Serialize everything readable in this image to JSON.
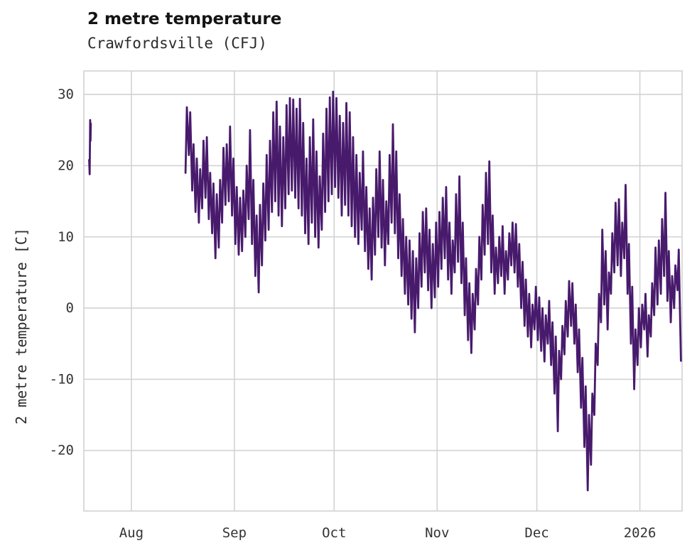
{
  "header": {
    "title": "2 metre temperature",
    "subtitle": "Crawfordsville (CFJ)"
  },
  "chart_data": {
    "type": "line",
    "title": "2 metre temperature",
    "subtitle": "Crawfordsville (CFJ)",
    "xlabel": "",
    "ylabel": "2 metre temperature [C]",
    "legend": "none",
    "grid": "on",
    "line_color": "#481a6c",
    "grid_color": "#d2d2d2",
    "tick_color": "#333333",
    "x_domain": [
      -14.3,
      165.7
    ],
    "y_domain": [
      -28.5,
      33.3
    ],
    "x_ticks": [
      {
        "label": "Aug",
        "day": 0
      },
      {
        "label": "Sep",
        "day": 31
      },
      {
        "label": "Oct",
        "day": 61
      },
      {
        "label": "Nov",
        "day": 92
      },
      {
        "label": "Dec",
        "day": 122
      },
      {
        "label": "2026",
        "day": 153
      }
    ],
    "y_ticks": [
      -20,
      -10,
      0,
      10,
      20,
      30
    ],
    "series": [
      {
        "name": "pre-gap-segment",
        "points": [
          [
            -12.7,
            20.8
          ],
          [
            -12.55,
            18.8
          ],
          [
            -12.4,
            26.4
          ],
          [
            -12.3,
            23.5
          ],
          [
            -12.2,
            25.9
          ]
        ]
      },
      {
        "name": "main-segment",
        "start_day": 16,
        "daily_low_high": [
          [
            19.0,
            28.2
          ],
          [
            21.5,
            27.5
          ],
          [
            16.5,
            23.0
          ],
          [
            13.5,
            21.0
          ],
          [
            12.0,
            19.5
          ],
          [
            14.0,
            23.5
          ],
          [
            15.5,
            24.0
          ],
          [
            12.5,
            19.0
          ],
          [
            10.5,
            17.5
          ],
          [
            7.0,
            16.0
          ],
          [
            8.5,
            18.0
          ],
          [
            12.0,
            22.5
          ],
          [
            14.5,
            23.0
          ],
          [
            15.0,
            25.5
          ],
          [
            13.0,
            21.0
          ],
          [
            9.0,
            17.0
          ],
          [
            7.5,
            15.5
          ],
          [
            8.0,
            16.5
          ],
          [
            10.0,
            20.0
          ],
          [
            12.5,
            25.0
          ],
          [
            9.0,
            18.0
          ],
          [
            4.5,
            13.0
          ],
          [
            2.2,
            14.5
          ],
          [
            6.0,
            17.5
          ],
          [
            9.5,
            21.5
          ],
          [
            11.0,
            23.5
          ],
          [
            13.5,
            27.5
          ],
          [
            15.0,
            29.0
          ],
          [
            13.0,
            25.5
          ],
          [
            11.5,
            24.0
          ],
          [
            14.0,
            28.5
          ],
          [
            16.0,
            29.5
          ],
          [
            16.5,
            29.3
          ],
          [
            15.5,
            28.0
          ],
          [
            14.0,
            29.4
          ],
          [
            13.0,
            26.0
          ],
          [
            10.5,
            21.0
          ],
          [
            9.0,
            24.0
          ],
          [
            12.0,
            26.5
          ],
          [
            10.0,
            22.0
          ],
          [
            8.5,
            18.5
          ],
          [
            11.0,
            24.5
          ],
          [
            13.5,
            28.0
          ],
          [
            15.0,
            29.6
          ],
          [
            16.0,
            30.4
          ],
          [
            17.0,
            29.5
          ],
          [
            15.5,
            27.0
          ],
          [
            13.0,
            26.0
          ],
          [
            14.5,
            28.8
          ],
          [
            13.0,
            27.5
          ],
          [
            11.5,
            24.0
          ],
          [
            10.0,
            21.5
          ],
          [
            9.0,
            19.0
          ],
          [
            11.0,
            22.0
          ],
          [
            8.0,
            17.0
          ],
          [
            5.5,
            14.0
          ],
          [
            4.0,
            15.5
          ],
          [
            7.5,
            19.5
          ],
          [
            10.0,
            22.0
          ],
          [
            8.5,
            18.0
          ],
          [
            6.0,
            15.0
          ],
          [
            9.0,
            21.5
          ],
          [
            12.0,
            25.8
          ],
          [
            10.5,
            22.0
          ],
          [
            7.0,
            16.0
          ],
          [
            4.5,
            12.5
          ],
          [
            2.0,
            10.0
          ],
          [
            0.5,
            9.5
          ],
          [
            -1.5,
            8.0
          ],
          [
            -3.4,
            7.0
          ],
          [
            0.0,
            10.5
          ],
          [
            3.0,
            13.5
          ],
          [
            5.0,
            14.0
          ],
          [
            2.5,
            11.0
          ],
          [
            0.0,
            9.0
          ],
          [
            1.5,
            12.0
          ],
          [
            3.0,
            13.5
          ],
          [
            5.5,
            15.5
          ],
          [
            7.0,
            17.0
          ],
          [
            4.0,
            12.0
          ],
          [
            2.0,
            9.5
          ],
          [
            5.0,
            16.0
          ],
          [
            6.5,
            18.5
          ],
          [
            3.5,
            12.0
          ],
          [
            -1.0,
            7.0
          ],
          [
            -4.5,
            3.5
          ],
          [
            -6.3,
            2.0
          ],
          [
            -3.0,
            5.5
          ],
          [
            0.5,
            10.0
          ],
          [
            4.0,
            14.5
          ],
          [
            7.5,
            19.0
          ],
          [
            9.0,
            20.6
          ],
          [
            5.0,
            13.0
          ],
          [
            2.0,
            8.5
          ],
          [
            3.5,
            10.0
          ],
          [
            4.5,
            11.5
          ],
          [
            2.0,
            8.0
          ],
          [
            4.0,
            10.5
          ],
          [
            6.0,
            12.0
          ],
          [
            5.0,
            11.8
          ],
          [
            3.0,
            9.0
          ],
          [
            0.0,
            6.5
          ],
          [
            -2.5,
            4.0
          ],
          [
            -4.0,
            2.0
          ],
          [
            -5.5,
            0.5
          ],
          [
            -3.0,
            3.0
          ],
          [
            -4.5,
            1.5
          ],
          [
            -6.0,
            0.0
          ],
          [
            -7.5,
            -1.0
          ],
          [
            -5.0,
            1.0
          ],
          [
            -8.0,
            -2.0
          ],
          [
            -12.0,
            -4.0
          ],
          [
            -17.3,
            -6.0
          ],
          [
            -10.0,
            -2.5
          ],
          [
            -6.5,
            1.0
          ],
          [
            -4.0,
            3.8
          ],
          [
            -2.5,
            3.5
          ],
          [
            -5.0,
            0.5
          ],
          [
            -9.0,
            -3.0
          ],
          [
            -14.0,
            -7.0
          ],
          [
            -19.5,
            -11.0
          ],
          [
            -25.6,
            -15.0
          ],
          [
            -22.0,
            -12.0
          ],
          [
            -15.0,
            -5.0
          ],
          [
            -8.0,
            2.0
          ],
          [
            -2.0,
            11.0
          ],
          [
            0.5,
            8.0
          ],
          [
            -3.0,
            5.0
          ],
          [
            2.0,
            10.5
          ],
          [
            5.0,
            14.8
          ],
          [
            6.0,
            15.3
          ],
          [
            4.5,
            12.0
          ],
          [
            7.0,
            17.3
          ],
          [
            2.0,
            9.0
          ],
          [
            -5.0,
            3.0
          ],
          [
            -11.4,
            -3.0
          ],
          [
            -8.0,
            0.0
          ],
          [
            -5.5,
            0.5
          ],
          [
            -3.0,
            2.0
          ],
          [
            -6.8,
            -1.0
          ],
          [
            -4.0,
            3.5
          ],
          [
            -1.0,
            8.5
          ],
          [
            0.5,
            9.5
          ],
          [
            2.0,
            12.5
          ],
          [
            4.5,
            16.2
          ],
          [
            1.0,
            8.0
          ],
          [
            -2.0,
            4.5
          ],
          [
            0.0,
            6.0
          ],
          [
            2.5,
            8.2
          ]
        ],
        "tail_points": [
          [
            165.35,
            -7.4
          ]
        ]
      }
    ]
  }
}
